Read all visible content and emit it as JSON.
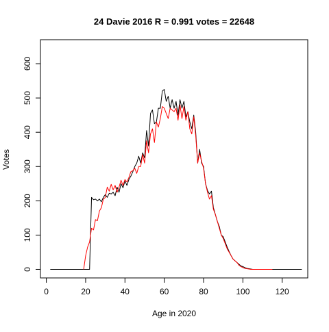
{
  "chart_data": {
    "type": "line",
    "title": "24 Davie 2016 R = 0.991 votes = 22648",
    "xlabel": "Age in 2020",
    "ylabel": "Votes",
    "xlim": [
      -3,
      133
    ],
    "ylim": [
      -25,
      670
    ],
    "xticks": [
      0,
      20,
      40,
      60,
      80,
      100,
      120
    ],
    "yticks": [
      0,
      100,
      200,
      300,
      400,
      500,
      600
    ],
    "grid": false,
    "legend": "none",
    "series": [
      {
        "color": "#000000",
        "points": [
          [
            2,
            0
          ],
          [
            4,
            0
          ],
          [
            6,
            0
          ],
          [
            8,
            0
          ],
          [
            10,
            0
          ],
          [
            12,
            0
          ],
          [
            14,
            0
          ],
          [
            16,
            0
          ],
          [
            18,
            0
          ],
          [
            20,
            0
          ],
          [
            21,
            0
          ],
          [
            22,
            0
          ],
          [
            23,
            210
          ],
          [
            24,
            203
          ],
          [
            25,
            205
          ],
          [
            26,
            200
          ],
          [
            27,
            205
          ],
          [
            28,
            197
          ],
          [
            29,
            210
          ],
          [
            30,
            218
          ],
          [
            31,
            210
          ],
          [
            32,
            222
          ],
          [
            33,
            220
          ],
          [
            34,
            225
          ],
          [
            35,
            215
          ],
          [
            36,
            240
          ],
          [
            37,
            225
          ],
          [
            38,
            250
          ],
          [
            39,
            238
          ],
          [
            40,
            258
          ],
          [
            41,
            245
          ],
          [
            42,
            262
          ],
          [
            43,
            272
          ],
          [
            44,
            285
          ],
          [
            45,
            300
          ],
          [
            46,
            310
          ],
          [
            47,
            330
          ],
          [
            48,
            310
          ],
          [
            49,
            340
          ],
          [
            50,
            325
          ],
          [
            51,
            405
          ],
          [
            52,
            360
          ],
          [
            53,
            455
          ],
          [
            54,
            465
          ],
          [
            55,
            425
          ],
          [
            56,
            430
          ],
          [
            57,
            470
          ],
          [
            58,
            470
          ],
          [
            59,
            520
          ],
          [
            60,
            525
          ],
          [
            61,
            490
          ],
          [
            62,
            505
          ],
          [
            63,
            470
          ],
          [
            64,
            495
          ],
          [
            65,
            470
          ],
          [
            66,
            490
          ],
          [
            67,
            450
          ],
          [
            68,
            495
          ],
          [
            69,
            470
          ],
          [
            70,
            490
          ],
          [
            71,
            445
          ],
          [
            72,
            460
          ],
          [
            73,
            430
          ],
          [
            74,
            410
          ],
          [
            75,
            450
          ],
          [
            76,
            400
          ],
          [
            77,
            310
          ],
          [
            78,
            350
          ],
          [
            79,
            310
          ],
          [
            80,
            300
          ],
          [
            81,
            250
          ],
          [
            82,
            230
          ],
          [
            83,
            220
          ],
          [
            84,
            228
          ],
          [
            85,
            180
          ],
          [
            86,
            160
          ],
          [
            87,
            140
          ],
          [
            88,
            125
          ],
          [
            89,
            100
          ],
          [
            90,
            95
          ],
          [
            91,
            80
          ],
          [
            92,
            65
          ],
          [
            93,
            52
          ],
          [
            94,
            40
          ],
          [
            95,
            30
          ],
          [
            96,
            25
          ],
          [
            97,
            20
          ],
          [
            98,
            15
          ],
          [
            99,
            10
          ],
          [
            100,
            8
          ],
          [
            101,
            5
          ],
          [
            102,
            3
          ],
          [
            103,
            2
          ],
          [
            104,
            1
          ],
          [
            105,
            0
          ],
          [
            110,
            0
          ],
          [
            115,
            0
          ],
          [
            120,
            0
          ],
          [
            125,
            0
          ],
          [
            130,
            0
          ]
        ]
      },
      {
        "color": "#ff0000",
        "points": [
          [
            19,
            0
          ],
          [
            20,
            40
          ],
          [
            21,
            65
          ],
          [
            22,
            80
          ],
          [
            23,
            120
          ],
          [
            24,
            115
          ],
          [
            25,
            145
          ],
          [
            26,
            142
          ],
          [
            27,
            170
          ],
          [
            28,
            180
          ],
          [
            29,
            205
          ],
          [
            30,
            210
          ],
          [
            31,
            240
          ],
          [
            32,
            228
          ],
          [
            33,
            248
          ],
          [
            34,
            232
          ],
          [
            35,
            245
          ],
          [
            36,
            225
          ],
          [
            37,
            240
          ],
          [
            38,
            260
          ],
          [
            39,
            245
          ],
          [
            40,
            262
          ],
          [
            41,
            255
          ],
          [
            42,
            268
          ],
          [
            43,
            285
          ],
          [
            44,
            288
          ],
          [
            45,
            295
          ],
          [
            46,
            280
          ],
          [
            47,
            300
          ],
          [
            48,
            300
          ],
          [
            49,
            335
          ],
          [
            50,
            310
          ],
          [
            51,
            375
          ],
          [
            52,
            340
          ],
          [
            53,
            395
          ],
          [
            54,
            410
          ],
          [
            55,
            370
          ],
          [
            56,
            430
          ],
          [
            57,
            415
          ],
          [
            58,
            440
          ],
          [
            59,
            475
          ],
          [
            60,
            470
          ],
          [
            61,
            455
          ],
          [
            62,
            440
          ],
          [
            63,
            470
          ],
          [
            64,
            465
          ],
          [
            65,
            460
          ],
          [
            66,
            470
          ],
          [
            67,
            435
          ],
          [
            68,
            480
          ],
          [
            69,
            440
          ],
          [
            70,
            475
          ],
          [
            71,
            435
          ],
          [
            72,
            460
          ],
          [
            73,
            410
          ],
          [
            74,
            395
          ],
          [
            75,
            445
          ],
          [
            76,
            390
          ],
          [
            77,
            310
          ],
          [
            78,
            340
          ],
          [
            79,
            315
          ],
          [
            80,
            295
          ],
          [
            81,
            250
          ],
          [
            82,
            225
          ],
          [
            83,
            205
          ],
          [
            84,
            215
          ],
          [
            85,
            175
          ],
          [
            86,
            160
          ],
          [
            87,
            140
          ],
          [
            88,
            120
          ],
          [
            89,
            100
          ],
          [
            90,
            90
          ],
          [
            91,
            75
          ],
          [
            92,
            60
          ],
          [
            93,
            50
          ],
          [
            94,
            40
          ],
          [
            95,
            30
          ],
          [
            96,
            25
          ],
          [
            97,
            20
          ],
          [
            98,
            12
          ],
          [
            99,
            8
          ],
          [
            100,
            5
          ],
          [
            101,
            3
          ],
          [
            102,
            2
          ],
          [
            103,
            1
          ],
          [
            104,
            0
          ],
          [
            105,
            0
          ],
          [
            110,
            0
          ],
          [
            115,
            0
          ]
        ]
      }
    ]
  }
}
